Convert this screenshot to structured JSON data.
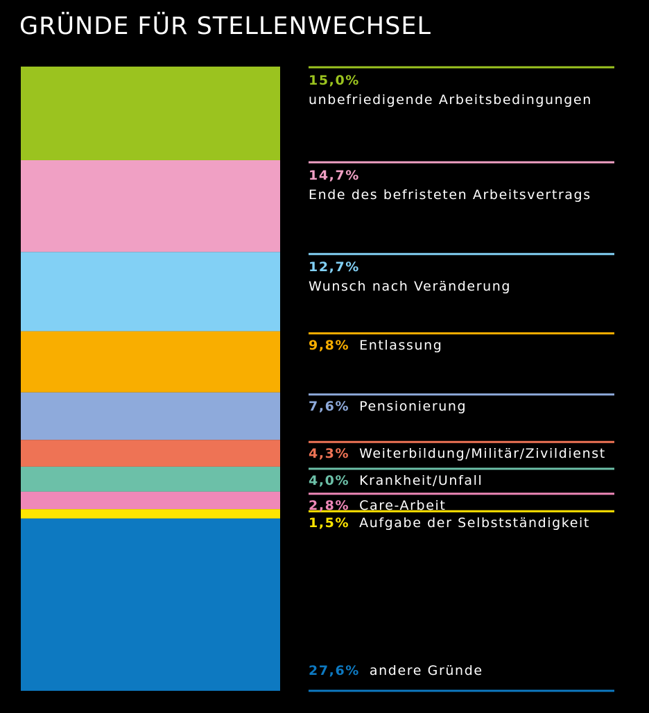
{
  "chart_data": {
    "type": "bar",
    "stacked": true,
    "title": "GRÜNDE FÜR STELLENWECHSEL",
    "unit": "%",
    "ylim": [
      0,
      100
    ],
    "segments": [
      {
        "label": "unbefriedigende Arbeitsbedingungen",
        "value": 15.0,
        "value_text": "15,0%",
        "color": "#9bc31f"
      },
      {
        "label": "Ende des befristeten Arbeitsvertrags",
        "value": 14.7,
        "value_text": "14,7%",
        "color": "#f0a0c4"
      },
      {
        "label": "Wunsch nach Veränderung",
        "value": 12.7,
        "value_text": "12,7%",
        "color": "#82d0f5"
      },
      {
        "label": "Entlassung",
        "value": 9.8,
        "value_text": "9,8%",
        "color": "#f9ae00"
      },
      {
        "label": "Pensionierung",
        "value": 7.6,
        "value_text": "7,6%",
        "color": "#8eaadb"
      },
      {
        "label": "Weiterbildung/Militär/Zivildienst",
        "value": 4.3,
        "value_text": "4,3%",
        "color": "#ee7355"
      },
      {
        "label": "Krankheit/Unfall",
        "value": 4.0,
        "value_text": "4,0%",
        "color": "#6cc0a8"
      },
      {
        "label": "Care-Arbeit",
        "value": 2.8,
        "value_text": "2,8%",
        "color": "#ef88b8"
      },
      {
        "label": "Aufgabe der Selbstständigkeit",
        "value": 1.5,
        "value_text": "1,5%",
        "color": "#ffe500"
      },
      {
        "label": "andere Gründe",
        "value": 27.6,
        "value_text": "27,6%",
        "color": "#0d79c1"
      }
    ]
  }
}
